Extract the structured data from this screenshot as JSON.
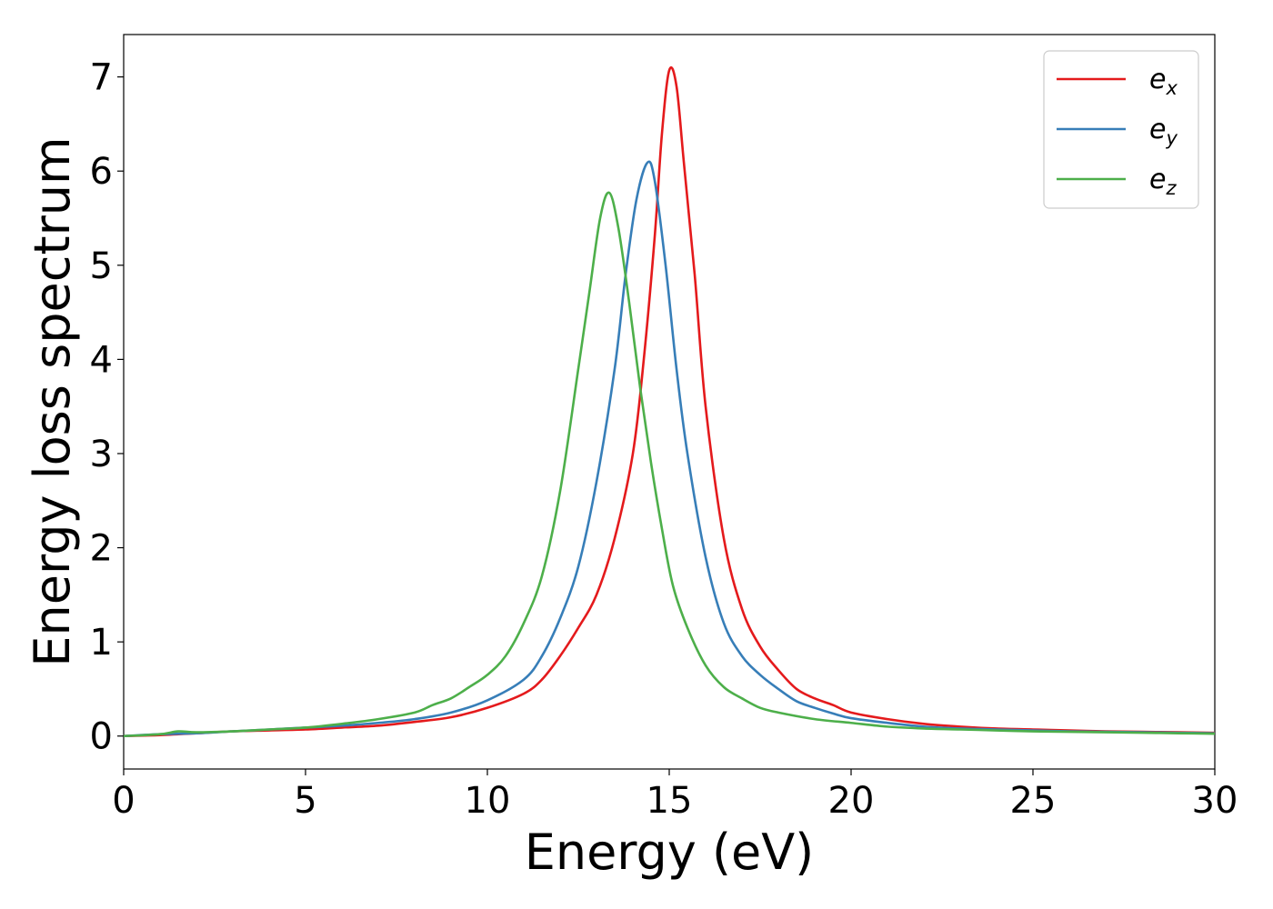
{
  "chart_data": {
    "type": "line",
    "title": "",
    "xlabel": "Energy (eV)",
    "ylabel": "Energy loss spectrum",
    "xlim": [
      0,
      30
    ],
    "ylim": [
      -0.35,
      7.45
    ],
    "xticks": [
      0,
      5,
      10,
      15,
      20,
      25,
      30
    ],
    "yticks": [
      0,
      1,
      2,
      3,
      4,
      5,
      6,
      7
    ],
    "grid": false,
    "legend_position": "top-right",
    "series": [
      {
        "name": "e_x",
        "label_base": "e",
        "label_sub": "x",
        "color": "#e41a1c",
        "x": [
          0,
          1,
          2,
          3,
          4,
          5,
          6,
          7,
          8,
          9,
          10,
          11,
          11.5,
          12,
          12.5,
          13,
          13.5,
          14,
          14.3,
          14.6,
          14.8,
          15.0,
          15.2,
          15.4,
          15.7,
          16.0,
          16.5,
          17,
          17.5,
          18,
          18.5,
          19,
          19.5,
          20,
          21,
          22,
          23,
          24,
          25,
          26,
          27,
          28,
          29,
          30
        ],
        "y": [
          0,
          0.01,
          0.03,
          0.05,
          0.06,
          0.07,
          0.09,
          0.11,
          0.15,
          0.2,
          0.3,
          0.45,
          0.6,
          0.85,
          1.15,
          1.5,
          2.1,
          3.0,
          4.0,
          5.3,
          6.4,
          7.07,
          6.9,
          6.1,
          4.9,
          3.5,
          2.1,
          1.35,
          0.95,
          0.7,
          0.5,
          0.4,
          0.33,
          0.25,
          0.18,
          0.13,
          0.1,
          0.08,
          0.07,
          0.06,
          0.05,
          0.045,
          0.04,
          0.035
        ]
      },
      {
        "name": "e_y",
        "label_base": "e",
        "label_sub": "y",
        "color": "#377eb8",
        "x": [
          0,
          1,
          2,
          3,
          4,
          5,
          6,
          7,
          8,
          9,
          10,
          11,
          11.5,
          12,
          12.5,
          13,
          13.5,
          13.8,
          14.1,
          14.4,
          14.6,
          14.9,
          15.2,
          15.5,
          16.0,
          16.5,
          17,
          17.5,
          18,
          18.5,
          19,
          19.5,
          20,
          21,
          22,
          23,
          24,
          25,
          26,
          27,
          28,
          29,
          30
        ],
        "y": [
          0,
          0.02,
          0.03,
          0.05,
          0.07,
          0.09,
          0.11,
          0.14,
          0.18,
          0.25,
          0.38,
          0.6,
          0.85,
          1.25,
          1.8,
          2.7,
          3.9,
          4.9,
          5.7,
          6.09,
          5.9,
          5.0,
          3.9,
          3.0,
          1.9,
          1.2,
          0.85,
          0.65,
          0.5,
          0.37,
          0.3,
          0.24,
          0.19,
          0.14,
          0.1,
          0.08,
          0.07,
          0.06,
          0.05,
          0.045,
          0.04,
          0.035,
          0.03
        ]
      },
      {
        "name": "e_z",
        "label_base": "e",
        "label_sub": "z",
        "color": "#4daf4a",
        "x": [
          0,
          1,
          1.5,
          2,
          3,
          4,
          5,
          6,
          7,
          8,
          8.5,
          9,
          9.5,
          10,
          10.5,
          11,
          11.5,
          12,
          12.5,
          12.8,
          13.1,
          13.35,
          13.6,
          13.9,
          14.2,
          14.5,
          14.8,
          15.1,
          15.5,
          16,
          16.5,
          17,
          17.5,
          18,
          19,
          20,
          21,
          22,
          23,
          24,
          25,
          26,
          27,
          28,
          29,
          30
        ],
        "y": [
          0,
          0.02,
          0.05,
          0.04,
          0.05,
          0.07,
          0.09,
          0.13,
          0.18,
          0.25,
          0.33,
          0.4,
          0.52,
          0.65,
          0.85,
          1.2,
          1.7,
          2.6,
          3.9,
          4.7,
          5.5,
          5.77,
          5.4,
          4.6,
          3.7,
          2.9,
          2.2,
          1.6,
          1.15,
          0.75,
          0.52,
          0.4,
          0.3,
          0.25,
          0.18,
          0.14,
          0.1,
          0.08,
          0.07,
          0.06,
          0.05,
          0.045,
          0.04,
          0.035,
          0.03,
          0.025
        ]
      }
    ]
  }
}
